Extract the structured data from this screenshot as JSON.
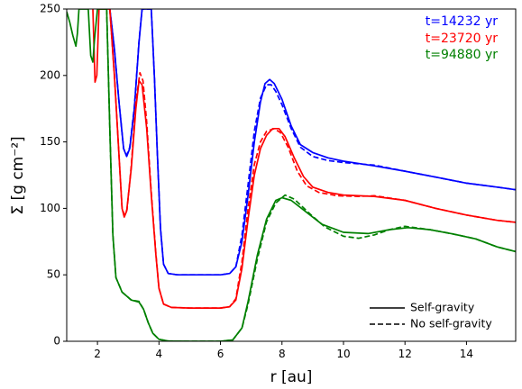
{
  "chart_data": {
    "type": "line",
    "xlabel": "r [au]",
    "ylabel": "Σ [g cm⁻²]",
    "xlim": [
      1.0,
      15.6
    ],
    "ylim": [
      0,
      250
    ],
    "x_ticks": [
      2,
      4,
      6,
      8,
      10,
      12,
      14
    ],
    "x_tick_labels": [
      "2",
      "4",
      "6",
      "8",
      "10",
      "12",
      "14"
    ],
    "y_ticks": [
      0,
      50,
      100,
      150,
      200,
      250
    ],
    "y_tick_labels": [
      "0",
      "50",
      "100",
      "150",
      "200",
      "250"
    ],
    "grid": false,
    "time_labels": [
      {
        "text": "t=14232 yr",
        "color": "#0000ff"
      },
      {
        "text": "t=23720 yr",
        "color": "#ff0000"
      },
      {
        "text": "t=94880 yr",
        "color": "#008000"
      }
    ],
    "legend": {
      "placement": "lower-right",
      "entries": [
        {
          "label": "Self-gravity",
          "style": "solid"
        },
        {
          "label": "No self-gravity",
          "style": "dashed"
        }
      ]
    },
    "series": [
      {
        "color": "#0000ff",
        "style": "solid",
        "points": [
          [
            2.4,
            250
          ],
          [
            2.55,
            220
          ],
          [
            2.7,
            180
          ],
          [
            2.85,
            145
          ],
          [
            2.95,
            139
          ],
          [
            3.05,
            145
          ],
          [
            3.2,
            175
          ],
          [
            3.35,
            225
          ],
          [
            3.45,
            250
          ],
          [
            3.75,
            250
          ],
          [
            3.85,
            200
          ],
          [
            3.95,
            140
          ],
          [
            4.05,
            85
          ],
          [
            4.15,
            58
          ],
          [
            4.3,
            51
          ],
          [
            4.6,
            50
          ],
          [
            5,
            50
          ],
          [
            5.5,
            50
          ],
          [
            6,
            50
          ],
          [
            6.3,
            51
          ],
          [
            6.5,
            56
          ],
          [
            6.7,
            75
          ],
          [
            6.9,
            110
          ],
          [
            7.1,
            150
          ],
          [
            7.3,
            180
          ],
          [
            7.45,
            194
          ],
          [
            7.6,
            197
          ],
          [
            7.75,
            194
          ],
          [
            8.0,
            182
          ],
          [
            8.3,
            162
          ],
          [
            8.6,
            148
          ],
          [
            9,
            142
          ],
          [
            9.5,
            138
          ],
          [
            10,
            135.5
          ],
          [
            11,
            132
          ],
          [
            12,
            128
          ],
          [
            13,
            123.5
          ],
          [
            14,
            119
          ],
          [
            15,
            116
          ],
          [
            15.6,
            114
          ]
        ]
      },
      {
        "color": "#0000ff",
        "style": "dashed",
        "points": [
          [
            2.4,
            250
          ],
          [
            2.55,
            220
          ],
          [
            2.7,
            180
          ],
          [
            2.85,
            145
          ],
          [
            2.95,
            140
          ],
          [
            3.05,
            146
          ],
          [
            3.2,
            176
          ],
          [
            3.35,
            226
          ],
          [
            3.45,
            250
          ],
          [
            3.75,
            250
          ],
          [
            3.85,
            200
          ],
          [
            3.95,
            140
          ],
          [
            4.05,
            85
          ],
          [
            4.15,
            58
          ],
          [
            4.3,
            51
          ],
          [
            4.6,
            50
          ],
          [
            5,
            50
          ],
          [
            5.5,
            50
          ],
          [
            6,
            50
          ],
          [
            6.3,
            51
          ],
          [
            6.5,
            56
          ],
          [
            6.7,
            80
          ],
          [
            6.9,
            118
          ],
          [
            7.1,
            158
          ],
          [
            7.3,
            183
          ],
          [
            7.5,
            193
          ],
          [
            7.65,
            193
          ],
          [
            7.8,
            188
          ],
          [
            8.0,
            178
          ],
          [
            8.3,
            160
          ],
          [
            8.6,
            146
          ],
          [
            9,
            139
          ],
          [
            9.5,
            136
          ],
          [
            10,
            134.5
          ],
          [
            11,
            132.5
          ],
          [
            12,
            128
          ],
          [
            13,
            123.5
          ],
          [
            14,
            119
          ],
          [
            15,
            116
          ],
          [
            15.6,
            114
          ]
        ]
      },
      {
        "color": "#ff0000",
        "style": "solid",
        "points": [
          [
            1.85,
            250
          ],
          [
            1.92,
            195
          ],
          [
            1.98,
            200
          ],
          [
            2.05,
            250
          ],
          [
            2.4,
            250
          ],
          [
            2.55,
            200
          ],
          [
            2.7,
            140
          ],
          [
            2.8,
            100
          ],
          [
            2.87,
            93.5
          ],
          [
            2.95,
            98
          ],
          [
            3.1,
            130
          ],
          [
            3.25,
            175
          ],
          [
            3.35,
            196
          ],
          [
            3.45,
            193
          ],
          [
            3.6,
            160
          ],
          [
            3.75,
            110
          ],
          [
            3.9,
            65
          ],
          [
            4.0,
            40
          ],
          [
            4.15,
            28
          ],
          [
            4.4,
            25.5
          ],
          [
            5,
            25
          ],
          [
            5.5,
            25
          ],
          [
            6,
            25
          ],
          [
            6.3,
            26
          ],
          [
            6.5,
            31
          ],
          [
            6.7,
            55
          ],
          [
            6.9,
            92
          ],
          [
            7.1,
            125
          ],
          [
            7.3,
            145
          ],
          [
            7.5,
            155
          ],
          [
            7.7,
            160
          ],
          [
            7.9,
            160
          ],
          [
            8.1,
            154
          ],
          [
            8.4,
            138
          ],
          [
            8.7,
            124
          ],
          [
            9,
            116
          ],
          [
            9.5,
            112
          ],
          [
            10,
            110
          ],
          [
            11,
            109
          ],
          [
            12,
            106
          ],
          [
            13,
            100
          ],
          [
            14,
            95
          ],
          [
            15,
            91
          ],
          [
            15.6,
            89.5
          ]
        ]
      },
      {
        "color": "#ff0000",
        "style": "dashed",
        "points": [
          [
            2.4,
            250
          ],
          [
            2.55,
            200
          ],
          [
            2.7,
            140
          ],
          [
            2.8,
            100
          ],
          [
            2.88,
            95
          ],
          [
            2.96,
            99
          ],
          [
            3.1,
            132
          ],
          [
            3.25,
            180
          ],
          [
            3.38,
            202
          ],
          [
            3.48,
            196
          ],
          [
            3.6,
            165
          ],
          [
            3.75,
            112
          ],
          [
            3.9,
            66
          ],
          [
            4.0,
            40
          ],
          [
            4.15,
            28
          ],
          [
            4.4,
            25.5
          ],
          [
            5,
            25
          ],
          [
            5.5,
            25
          ],
          [
            6,
            25
          ],
          [
            6.3,
            26
          ],
          [
            6.5,
            32
          ],
          [
            6.7,
            60
          ],
          [
            6.9,
            100
          ],
          [
            7.1,
            133
          ],
          [
            7.3,
            150
          ],
          [
            7.5,
            158
          ],
          [
            7.75,
            160
          ],
          [
            7.95,
            157
          ],
          [
            8.2,
            146
          ],
          [
            8.5,
            128
          ],
          [
            8.8,
            117
          ],
          [
            9.2,
            112
          ],
          [
            9.8,
            109.5
          ],
          [
            10.5,
            109
          ],
          [
            11,
            109.5
          ],
          [
            12,
            106
          ],
          [
            13,
            100
          ],
          [
            14,
            95
          ],
          [
            15,
            91
          ],
          [
            15.6,
            89.5
          ]
        ]
      },
      {
        "color": "#008000",
        "style": "solid",
        "points": [
          [
            1.0,
            248
          ],
          [
            1.1,
            240
          ],
          [
            1.2,
            230
          ],
          [
            1.3,
            222
          ],
          [
            1.35,
            232
          ],
          [
            1.4,
            250
          ],
          [
            1.7,
            250
          ],
          [
            1.78,
            215
          ],
          [
            1.85,
            210
          ],
          [
            1.9,
            226
          ],
          [
            2.0,
            250
          ],
          [
            2.3,
            250
          ],
          [
            2.4,
            160
          ],
          [
            2.5,
            80
          ],
          [
            2.6,
            48
          ],
          [
            2.8,
            37
          ],
          [
            3.1,
            31
          ],
          [
            3.35,
            29.5
          ],
          [
            3.5,
            24
          ],
          [
            3.65,
            14
          ],
          [
            3.8,
            6
          ],
          [
            4.0,
            1.5
          ],
          [
            4.3,
            0.2
          ],
          [
            5,
            0
          ],
          [
            6,
            0
          ],
          [
            6.4,
            1
          ],
          [
            6.7,
            10
          ],
          [
            6.9,
            30
          ],
          [
            7.2,
            65
          ],
          [
            7.5,
            92
          ],
          [
            7.8,
            106
          ],
          [
            8.0,
            108
          ],
          [
            8.3,
            106
          ],
          [
            8.8,
            97
          ],
          [
            9.3,
            88
          ],
          [
            10,
            82
          ],
          [
            10.8,
            81
          ],
          [
            11.5,
            84
          ],
          [
            12.1,
            85.5
          ],
          [
            12.8,
            84
          ],
          [
            13.5,
            81
          ],
          [
            14.3,
            77
          ],
          [
            15,
            71
          ],
          [
            15.6,
            67.5
          ]
        ]
      },
      {
        "color": "#008000",
        "style": "dashed",
        "points": [
          [
            2.3,
            250
          ],
          [
            2.4,
            160
          ],
          [
            2.5,
            80
          ],
          [
            2.6,
            48
          ],
          [
            2.8,
            37
          ],
          [
            3.1,
            31
          ],
          [
            3.35,
            30
          ],
          [
            3.5,
            24
          ],
          [
            3.65,
            14
          ],
          [
            3.8,
            6
          ],
          [
            4.0,
            1.5
          ],
          [
            4.3,
            0.2
          ],
          [
            5,
            0
          ],
          [
            6,
            0
          ],
          [
            6.4,
            1
          ],
          [
            6.7,
            10
          ],
          [
            6.9,
            28
          ],
          [
            7.2,
            62
          ],
          [
            7.5,
            90
          ],
          [
            7.8,
            104
          ],
          [
            8.1,
            110
          ],
          [
            8.4,
            107
          ],
          [
            8.9,
            96
          ],
          [
            9.4,
            86
          ],
          [
            10,
            79
          ],
          [
            10.5,
            77.5
          ],
          [
            11,
            80
          ],
          [
            11.5,
            84
          ],
          [
            12,
            86.5
          ],
          [
            12.8,
            84
          ],
          [
            13.5,
            81
          ],
          [
            14.3,
            77
          ],
          [
            15,
            71
          ],
          [
            15.6,
            67.5
          ]
        ]
      }
    ]
  }
}
